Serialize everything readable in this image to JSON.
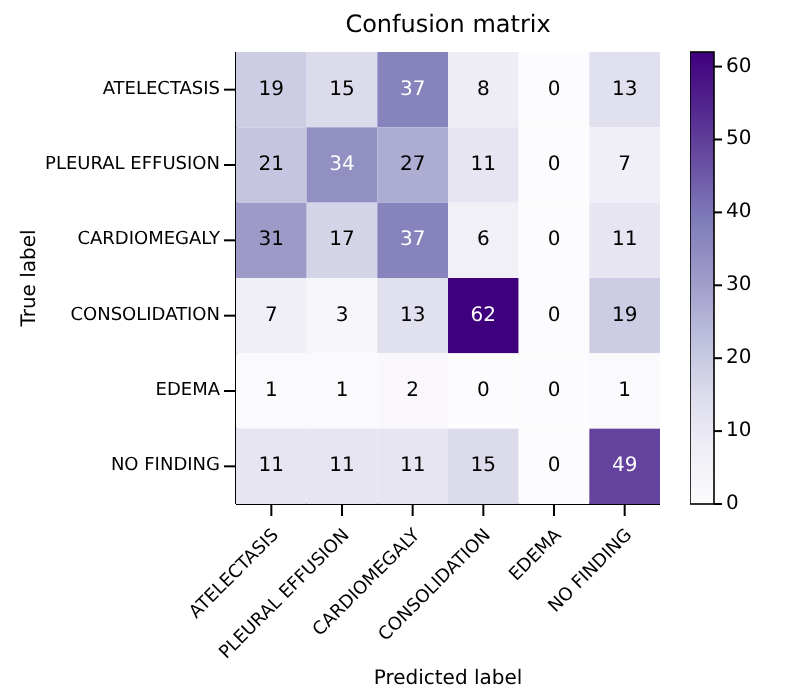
{
  "chart_data": {
    "type": "heatmap",
    "title": "Confusion matrix",
    "xlabel": "Predicted label",
    "ylabel": "True label",
    "categories": [
      "ATELECTASIS",
      "PLEURAL EFFUSION",
      "CARDIOMEGALY",
      "CONSOLIDATION",
      "EDEMA",
      "NO FINDING"
    ],
    "y_categories": [
      "ATELECTASIS",
      "PLEURAL EFFUSION",
      "CARDIOMEGALY",
      "CONSOLIDATION",
      "EDEMA",
      "NO FINDING"
    ],
    "cells": [
      [
        19,
        15,
        37,
        8,
        0,
        13
      ],
      [
        21,
        34,
        27,
        11,
        0,
        7
      ],
      [
        31,
        17,
        37,
        6,
        0,
        11
      ],
      [
        7,
        3,
        13,
        62,
        0,
        19
      ],
      [
        1,
        1,
        2,
        0,
        0,
        1
      ],
      [
        11,
        11,
        11,
        15,
        0,
        49
      ]
    ],
    "clim": [
      0,
      62
    ],
    "cticks": [
      0,
      10,
      20,
      30,
      40,
      50,
      60
    ],
    "data_labels": true
  }
}
